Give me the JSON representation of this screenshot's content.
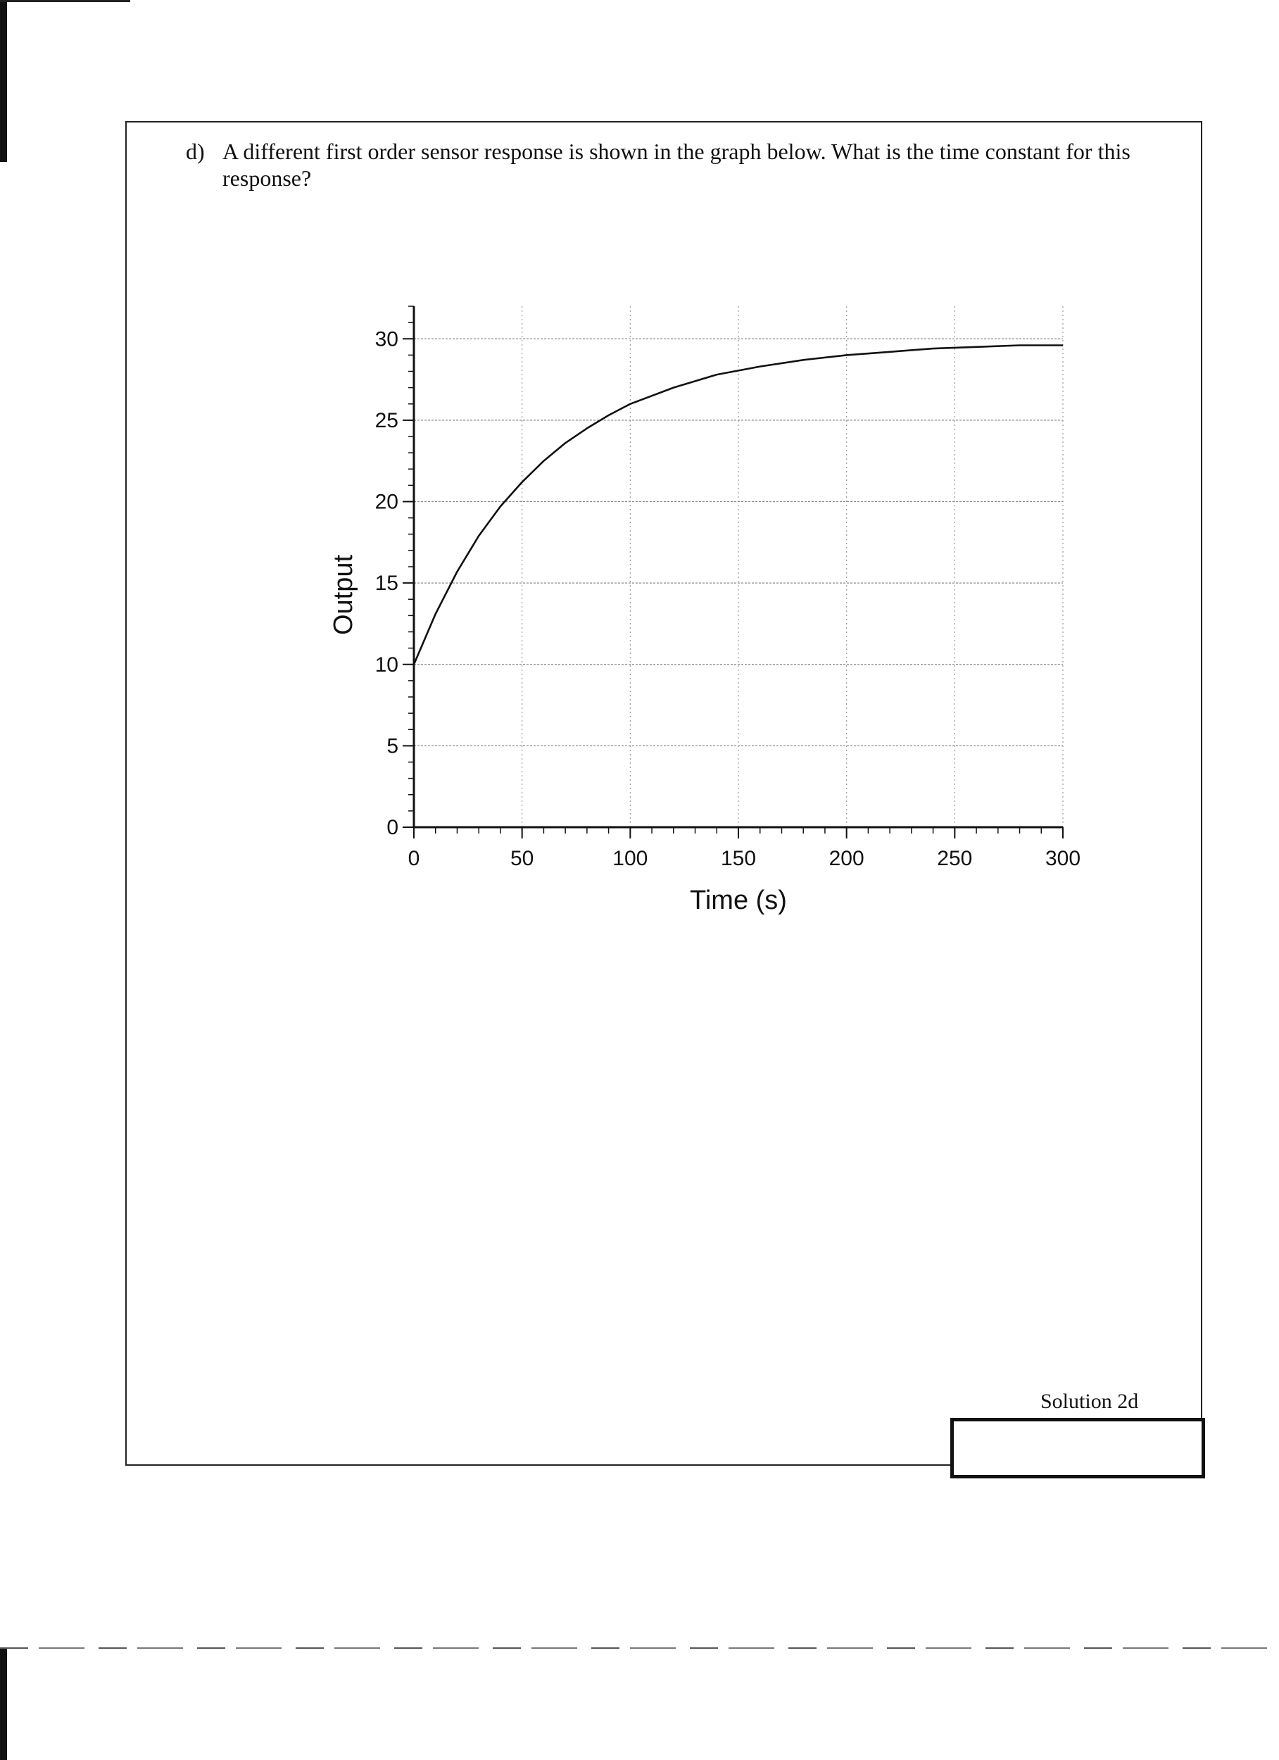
{
  "question": {
    "label": "d)",
    "text": "A different first order sensor response is shown in the graph below. What is the time constant for this response?"
  },
  "solution": {
    "label": "Solution 2d"
  },
  "chart_data": {
    "type": "line",
    "title": "",
    "xlabel": "Time (s)",
    "ylabel": "Output",
    "xlim": [
      0,
      300
    ],
    "ylim": [
      0,
      32
    ],
    "xticks": [
      0,
      50,
      100,
      150,
      200,
      250,
      300
    ],
    "yticks": [
      0,
      5,
      10,
      15,
      20,
      25,
      30
    ],
    "grid": true,
    "series": [
      {
        "x": [
          0,
          10,
          20,
          30,
          40,
          50,
          60,
          70,
          80,
          90,
          100,
          120,
          140,
          160,
          180,
          200,
          220,
          240,
          260,
          280,
          300
        ],
        "y": [
          10,
          13.1,
          15.7,
          17.9,
          19.7,
          21.2,
          22.5,
          23.6,
          24.5,
          25.3,
          26.0,
          27.0,
          27.8,
          28.3,
          28.7,
          29.0,
          29.2,
          29.4,
          29.5,
          29.6,
          29.6
        ]
      }
    ]
  }
}
